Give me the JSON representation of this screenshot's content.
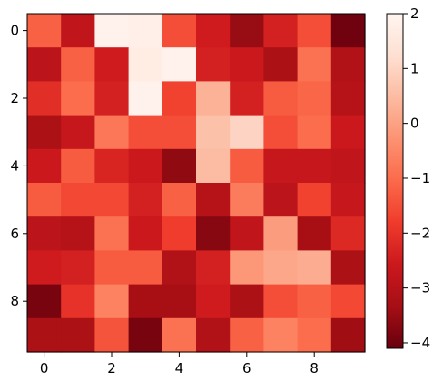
{
  "chart_data": {
    "type": "heatmap",
    "colormap": "Reds_r",
    "rows": 10,
    "cols": 10,
    "x_ticks": [
      "0",
      "2",
      "4",
      "6",
      "8"
    ],
    "y_ticks": [
      "0",
      "2",
      "4",
      "6",
      "8"
    ],
    "colorbar": {
      "vmin": -4.1,
      "vmax": 2.0,
      "ticks": [
        "−4",
        "−3",
        "−2",
        "−1",
        "0",
        "1",
        "2"
      ],
      "tick_values": [
        -4,
        -3,
        -2,
        -1,
        0,
        1,
        2
      ]
    },
    "values": [
      [
        -1.2,
        -2.8,
        1.9,
        1.8,
        -1.5,
        -2.5,
        -3.5,
        -2.4,
        -1.5,
        -4.0
      ],
      [
        -2.9,
        -1.2,
        -2.5,
        1.7,
        1.9,
        -2.4,
        -2.6,
        -3.2,
        -0.9,
        -3.1
      ],
      [
        -2.1,
        -1.0,
        -2.4,
        1.9,
        -1.7,
        0.3,
        -2.4,
        -1.3,
        -1.1,
        -3.0
      ],
      [
        -3.2,
        -2.7,
        -0.8,
        -1.5,
        -1.5,
        0.6,
        1.0,
        -1.5,
        -1.0,
        -2.6
      ],
      [
        -2.6,
        -1.3,
        -2.3,
        -2.6,
        -3.6,
        0.5,
        -1.3,
        -2.7,
        -2.7,
        -2.8
      ],
      [
        -1.3,
        -1.6,
        -1.6,
        -2.4,
        -1.2,
        -3.0,
        -0.7,
        -2.9,
        -1.7,
        -2.7
      ],
      [
        -2.9,
        -3.0,
        -0.9,
        -2.6,
        -1.8,
        -3.7,
        -2.8,
        -0.1,
        -3.3,
        -2.2
      ],
      [
        -2.5,
        -2.4,
        -1.3,
        -1.3,
        -3.1,
        -2.4,
        -0.2,
        0.1,
        0.2,
        -3.2
      ],
      [
        -3.9,
        -2.0,
        -0.6,
        -3.3,
        -3.3,
        -2.5,
        -3.2,
        -1.5,
        -1.2,
        -1.6
      ],
      [
        -3.2,
        -3.2,
        -1.4,
        -3.9,
        -0.9,
        -3.1,
        -1.2,
        -0.6,
        -1.0,
        -3.4
      ]
    ]
  }
}
